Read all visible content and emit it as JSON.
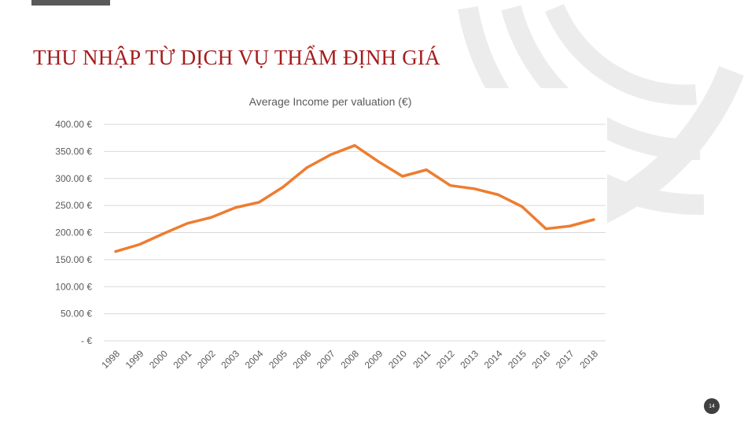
{
  "slide": {
    "title": "THU NHẬP TỪ DỊCH VỤ THẨM ĐỊNH GIÁ",
    "page_number": "14"
  },
  "colors": {
    "title": "#a61c1c",
    "line": "#ed7d31",
    "decoration": "#ececec"
  },
  "chart_data": {
    "type": "line",
    "title": "Average Income per valuation (€)",
    "xlabel": "",
    "ylabel": "",
    "categories": [
      "1998",
      "1999",
      "2000",
      "2001",
      "2002",
      "2003",
      "2004",
      "2005",
      "2006",
      "2007",
      "2008",
      "2009",
      "2010",
      "2011",
      "2012",
      "2013",
      "2014",
      "2015",
      "2016",
      "2017",
      "2018"
    ],
    "series": [
      {
        "values": [
          165,
          178,
          198,
          217,
          228,
          246,
          256,
          284,
          320,
          344,
          361,
          331,
          304,
          316,
          287,
          281,
          270,
          248,
          207,
          212,
          224
        ]
      }
    ],
    "ylim": [
      0,
      400
    ],
    "yticks": [
      0,
      50,
      100,
      150,
      200,
      250,
      300,
      350,
      400
    ],
    "ytick_labels": [
      "-  €",
      "50.00 €",
      "100.00 €",
      "150.00 €",
      "200.00 €",
      "250.00 €",
      "300.00 €",
      "350.00 €",
      "400.00 €"
    ],
    "grid": true,
    "legend": "none"
  }
}
